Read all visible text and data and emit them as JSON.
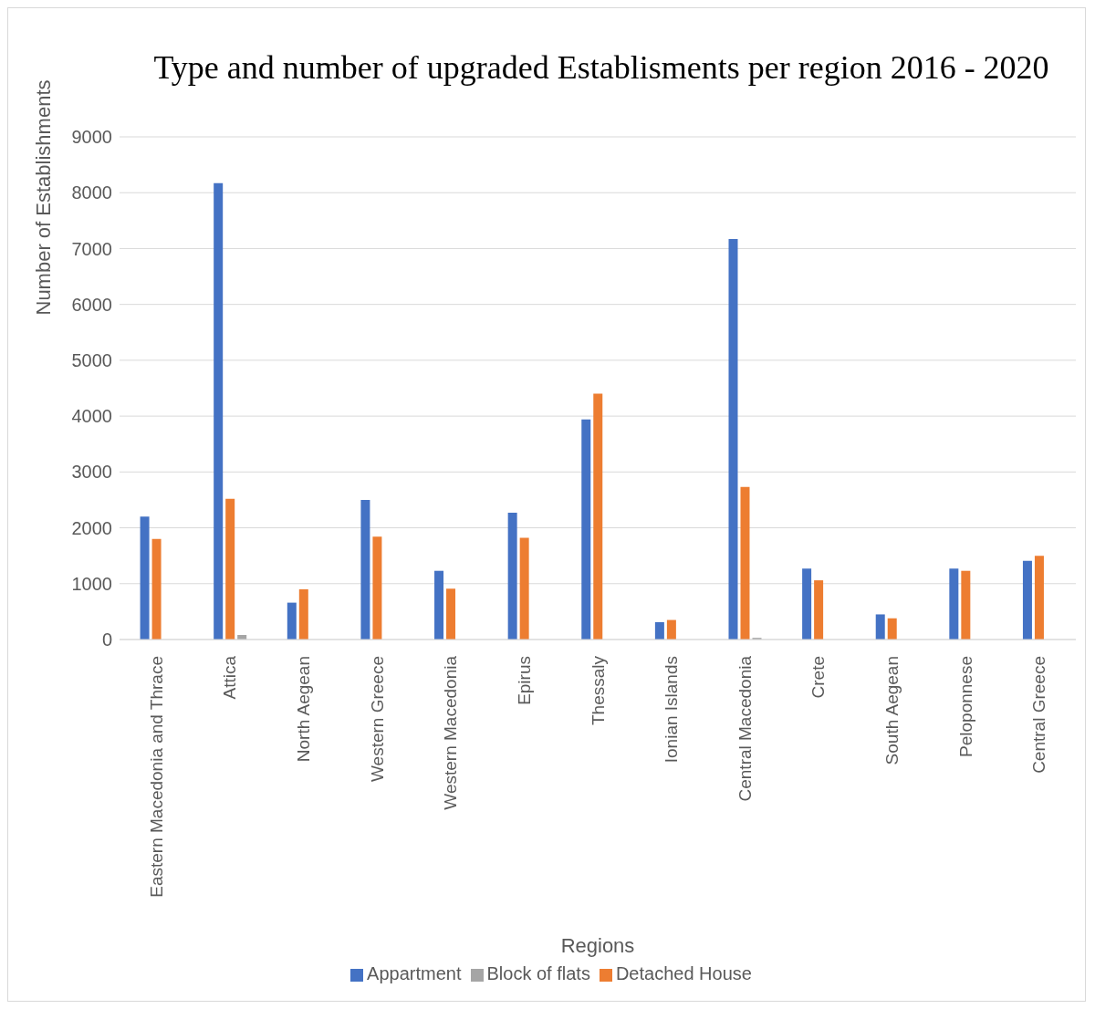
{
  "chart_data": {
    "type": "bar",
    "title": "Type and number of upgraded Establisments per region 2016 - 2020",
    "xlabel": "Regions",
    "ylabel": "Number of Establishments",
    "categories": [
      "Eastern Macedonia and Thrace",
      "Attica",
      "North Aegean",
      "Western Greece",
      "Western Macedonia",
      "Epirus",
      "Thessaly",
      "Ionian Islands",
      "Central Macedonia",
      "Crete",
      "South Aegean",
      "Peloponnese",
      "Central Greece"
    ],
    "series": [
      {
        "name": "Appartment",
        "color": "#4472c4",
        "values": [
          2200,
          8170,
          660,
          2500,
          1230,
          2270,
          3940,
          310,
          7170,
          1270,
          450,
          1270,
          1410
        ]
      },
      {
        "name": "Detached House",
        "color": "#ed7d31",
        "values": [
          1800,
          2520,
          900,
          1840,
          910,
          1820,
          4400,
          350,
          2730,
          1060,
          380,
          1230,
          1500
        ]
      },
      {
        "name": "Block of flats",
        "color": "#a5a5a5",
        "values": [
          0,
          80,
          0,
          0,
          0,
          0,
          0,
          0,
          30,
          0,
          0,
          0,
          0
        ]
      }
    ],
    "ylim": [
      0,
      9000
    ],
    "yticks": [
      0,
      1000,
      2000,
      3000,
      4000,
      5000,
      6000,
      7000,
      8000,
      9000
    ],
    "grid": "y",
    "legend": "bottom"
  }
}
